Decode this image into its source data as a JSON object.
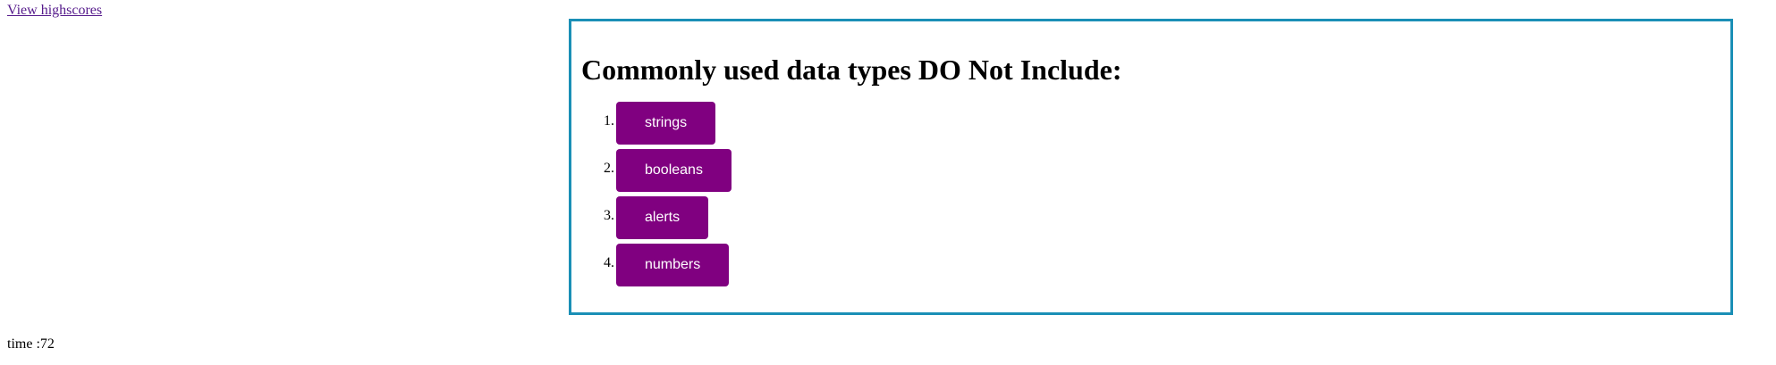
{
  "header": {
    "highscores_link": "View highscores"
  },
  "quiz": {
    "question": "Commonly used data types DO Not Include:",
    "choices": [
      {
        "number": "1.",
        "label": "strings"
      },
      {
        "number": "2.",
        "label": "booleans"
      },
      {
        "number": "3.",
        "label": "alerts"
      },
      {
        "number": "4.",
        "label": "numbers"
      }
    ]
  },
  "timer": {
    "text": "time :72"
  },
  "colors": {
    "button_bg": "#800080",
    "border": "#1a8fb6",
    "link": "#551a8b"
  }
}
